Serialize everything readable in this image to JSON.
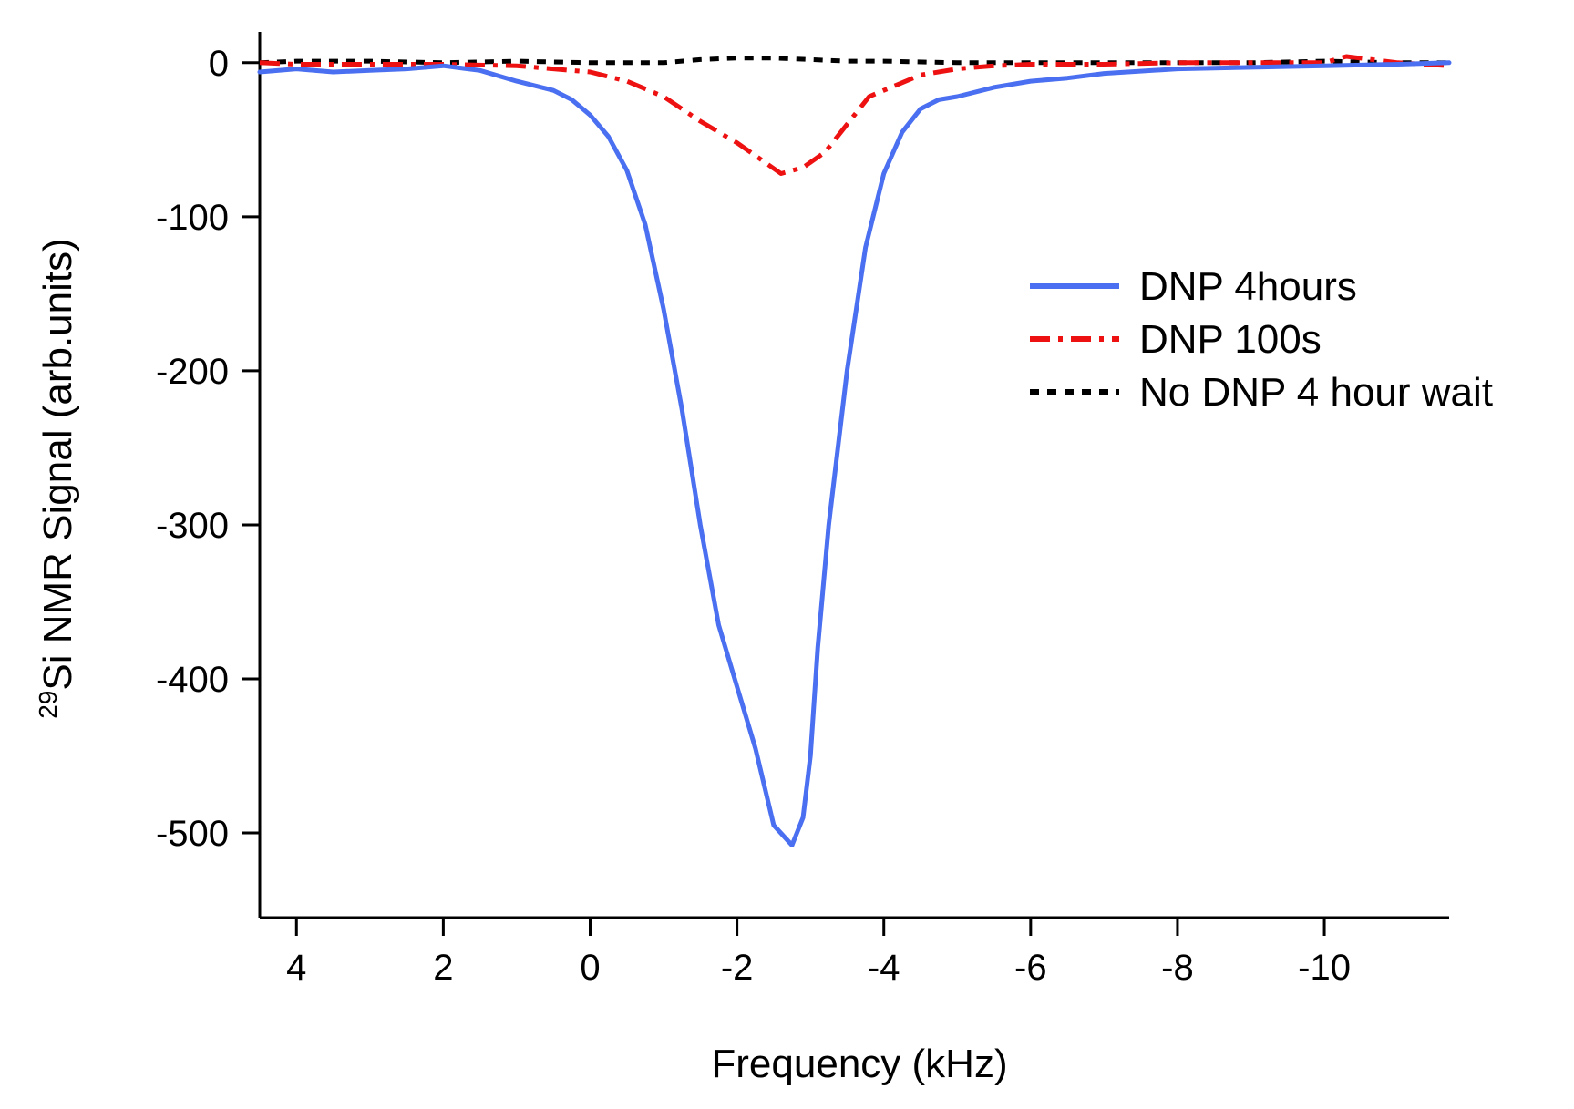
{
  "chart_data": {
    "type": "line",
    "title": "",
    "xlabel": "Frequency (kHz)",
    "ylabel": {
      "superscript": "29",
      "main": "Si NMR Signal (arb.units)"
    },
    "xlim": [
      4.5,
      -11.7
    ],
    "ylim": [
      -555,
      20
    ],
    "x_inverted": true,
    "x_ticks": [
      4,
      2,
      0,
      -2,
      -4,
      -6,
      -8,
      -10
    ],
    "x_tick_labels": [
      "4",
      "2",
      "0",
      "-2",
      "-4",
      "-6",
      "-8",
      "-10"
    ],
    "y_ticks": [
      0,
      -100,
      -200,
      -300,
      -400,
      -500
    ],
    "y_tick_labels": [
      "0",
      "-100",
      "-200",
      "-300",
      "-400",
      "-500"
    ],
    "legend_position": "right",
    "series": [
      {
        "name": "DNP 4hours",
        "color": "#4a6ff0",
        "style": "solid",
        "x": [
          4.5,
          4.0,
          3.5,
          3.0,
          2.5,
          2.0,
          1.5,
          1.0,
          0.5,
          0.25,
          0.0,
          -0.25,
          -0.5,
          -0.75,
          -1.0,
          -1.25,
          -1.5,
          -1.75,
          -2.0,
          -2.25,
          -2.5,
          -2.75,
          -2.9,
          -3.0,
          -3.1,
          -3.25,
          -3.5,
          -3.75,
          -4.0,
          -4.25,
          -4.5,
          -4.75,
          -5.0,
          -5.5,
          -6.0,
          -6.5,
          -7.0,
          -8.0,
          -9.0,
          -10.0,
          -11.0,
          -11.7
        ],
        "y": [
          -6,
          -4,
          -6,
          -5,
          -4,
          -2,
          -5,
          -12,
          -18,
          -24,
          -34,
          -48,
          -70,
          -105,
          -160,
          -225,
          -300,
          -365,
          -405,
          -445,
          -495,
          -508,
          -490,
          -450,
          -380,
          -300,
          -200,
          -120,
          -72,
          -45,
          -30,
          -24,
          -22,
          -16,
          -12,
          -10,
          -7,
          -4,
          -3,
          -2,
          -1,
          0
        ]
      },
      {
        "name": "DNP 100s",
        "color": "#ee1111",
        "style": "dashdot",
        "x": [
          4.5,
          4.0,
          3.0,
          2.0,
          1.0,
          0.5,
          0.0,
          -0.5,
          -1.0,
          -1.5,
          -2.0,
          -2.3,
          -2.6,
          -2.9,
          -3.2,
          -3.5,
          -3.8,
          -4.0,
          -4.5,
          -5.0,
          -5.5,
          -6.0,
          -7.0,
          -8.0,
          -9.0,
          -10.0,
          -10.3,
          -11.0,
          -11.7
        ],
        "y": [
          0,
          -1,
          -1,
          -1,
          -2,
          -4,
          -6,
          -12,
          -22,
          -38,
          -52,
          -62,
          -72,
          -68,
          -58,
          -40,
          -22,
          -18,
          -8,
          -4,
          -2,
          -1,
          -1,
          0,
          0,
          0,
          4,
          0,
          -2
        ]
      },
      {
        "name": "No DNP 4 hour wait",
        "color": "#000000",
        "style": "dotted",
        "x": [
          4.5,
          4.0,
          3.0,
          2.0,
          1.0,
          0.0,
          -1.0,
          -1.5,
          -2.0,
          -2.5,
          -3.0,
          -3.5,
          -4.0,
          -5.0,
          -6.0,
          -7.0,
          -8.0,
          -9.0,
          -10.0,
          -11.0,
          -11.7
        ],
        "y": [
          0,
          1,
          1,
          0,
          1,
          0,
          0,
          2,
          3,
          3,
          2,
          1,
          1,
          0,
          0,
          0,
          0,
          0,
          1,
          0,
          0
        ]
      }
    ]
  }
}
